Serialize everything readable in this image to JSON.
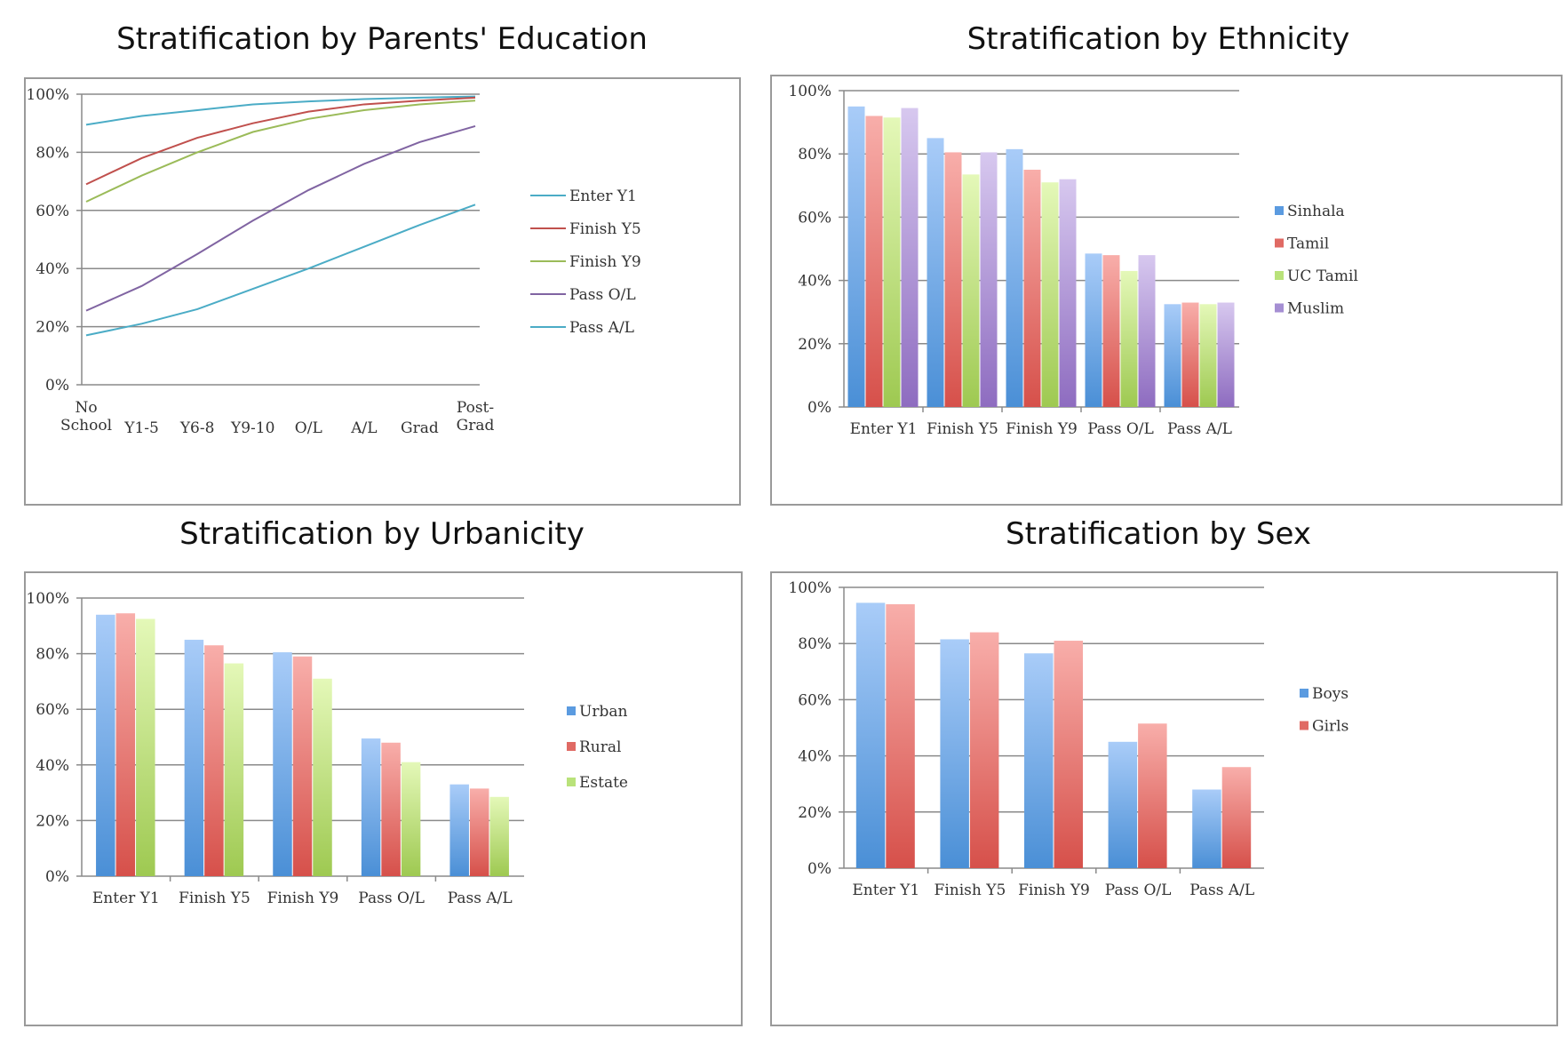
{
  "titles": {
    "education": "Stratification by Parents' Education",
    "ethnicity": "Stratification by Ethnicity",
    "urbanicity": "Stratification by Urbanicity",
    "sex": "Stratification by Sex"
  },
  "chart_data": [
    {
      "id": "education",
      "type": "line",
      "title": "Stratification by Parents' Education",
      "categories": [
        [
          "No",
          "School"
        ],
        [
          "Y1-5"
        ],
        [
          "Y6-8"
        ],
        [
          "Y9-10"
        ],
        [
          "O/L"
        ],
        [
          "A/L"
        ],
        [
          "Grad"
        ],
        [
          "Post-",
          "Grad"
        ]
      ],
      "ylim": [
        0,
        100
      ],
      "yticks": [
        "0%",
        "20%",
        "40%",
        "60%",
        "80%",
        "100%"
      ],
      "grid": true,
      "legend_position": "right",
      "series": [
        {
          "name": "Enter Y1",
          "color": "#4bacc6",
          "values": [
            89.5,
            92.5,
            94.5,
            96.5,
            97.5,
            98.3,
            98.8,
            99.2
          ]
        },
        {
          "name": "Finish Y5",
          "color": "#c0504d",
          "values": [
            69,
            78,
            85,
            90,
            94,
            96.5,
            97.8,
            98.8
          ]
        },
        {
          "name": "Finish Y9",
          "color": "#9bbb59",
          "values": [
            63,
            72,
            80,
            87,
            91.5,
            94.5,
            96.5,
            97.8
          ]
        },
        {
          "name": "Pass O/L",
          "color": "#8064a2",
          "values": [
            25.5,
            34,
            45,
            56.5,
            67,
            76,
            83.5,
            89
          ]
        },
        {
          "name": "Pass A/L",
          "color": "#4bacc6",
          "values": [
            17,
            21,
            26,
            33,
            40,
            47.5,
            55,
            62
          ]
        }
      ]
    },
    {
      "id": "ethnicity",
      "type": "bar",
      "title": "Stratification by Ethnicity",
      "categories": [
        "Enter Y1",
        "Finish Y5",
        "Finish Y9",
        "Pass O/L",
        "Pass A/L"
      ],
      "ylim": [
        0,
        100
      ],
      "yticks": [
        "0%",
        "20%",
        "40%",
        "60%",
        "80%",
        "100%"
      ],
      "grid": true,
      "legend_position": "right",
      "series": [
        {
          "name": "Sinhala",
          "color": "blue",
          "values": [
            95,
            85,
            81.5,
            48.5,
            32.5
          ]
        },
        {
          "name": "Tamil",
          "color": "red",
          "values": [
            92,
            80.5,
            75,
            48,
            33
          ]
        },
        {
          "name": "UC Tamil",
          "color": "green",
          "values": [
            91.5,
            73.5,
            71,
            43,
            32.5
          ]
        },
        {
          "name": "Muslim",
          "color": "purple",
          "values": [
            94.5,
            80.5,
            72,
            48,
            33
          ]
        }
      ]
    },
    {
      "id": "urbanicity",
      "type": "bar",
      "title": "Stratification by Urbanicity",
      "categories": [
        "Enter Y1",
        "Finish Y5",
        "Finish Y9",
        "Pass O/L",
        "Pass A/L"
      ],
      "ylim": [
        0,
        100
      ],
      "yticks": [
        "0%",
        "20%",
        "40%",
        "60%",
        "80%",
        "100%"
      ],
      "grid": true,
      "legend_position": "right",
      "series": [
        {
          "name": "Urban",
          "color": "blue",
          "values": [
            94,
            85,
            80.5,
            49.5,
            33
          ]
        },
        {
          "name": "Rural",
          "color": "red",
          "values": [
            94.5,
            83,
            79,
            48,
            31.5
          ]
        },
        {
          "name": "Estate",
          "color": "green",
          "values": [
            92.5,
            76.5,
            71,
            41,
            28.5
          ]
        }
      ]
    },
    {
      "id": "sex",
      "type": "bar",
      "title": "Stratification by Sex",
      "categories": [
        "Enter Y1",
        "Finish Y5",
        "Finish Y9",
        "Pass O/L",
        "Pass A/L"
      ],
      "ylim": [
        0,
        100
      ],
      "yticks": [
        "0%",
        "20%",
        "40%",
        "60%",
        "80%",
        "100%"
      ],
      "grid": true,
      "legend_position": "right",
      "series": [
        {
          "name": "Boys",
          "color": "blue",
          "values": [
            94.5,
            81.5,
            76.5,
            45,
            28
          ]
        },
        {
          "name": "Girls",
          "color": "red",
          "values": [
            94,
            84,
            81,
            51.5,
            36
          ]
        }
      ]
    }
  ]
}
